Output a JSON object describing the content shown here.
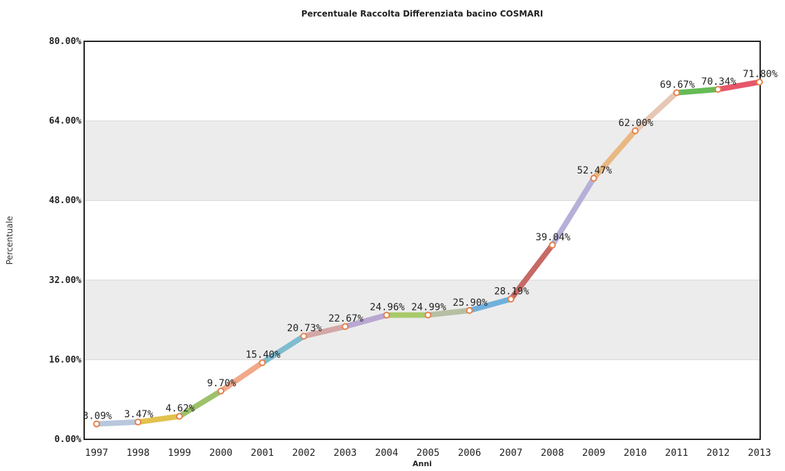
{
  "chart_data": {
    "type": "line",
    "title": "Percentuale Raccolta Differenziata bacino COSMARI",
    "xlabel": "Anni",
    "ylabel": "Percentuale",
    "ylim": [
      0,
      80
    ],
    "y_tick_values": [
      0,
      16,
      32,
      48,
      64,
      80
    ],
    "y_tick_labels": [
      "0.00%",
      "16.00%",
      "32.00%",
      "48.00%",
      "64.00%",
      "80.00%"
    ],
    "categories": [
      "1997",
      "1998",
      "1999",
      "2000",
      "2001",
      "2002",
      "2003",
      "2004",
      "2005",
      "2006",
      "2007",
      "2008",
      "2009",
      "2010",
      "2011",
      "2012",
      "2013"
    ],
    "values": [
      3.09,
      3.47,
      4.62,
      9.7,
      15.4,
      20.73,
      22.67,
      24.96,
      24.99,
      25.9,
      28.19,
      39.04,
      52.47,
      62.0,
      69.67,
      70.34,
      71.8
    ],
    "data_labels": [
      "3.09%",
      "3.47%",
      "4.62%",
      "9.70%",
      "15.40%",
      "20.73%",
      "22.67%",
      "24.96%",
      "24.99%",
      "25.90%",
      "28.19%",
      "39.04%",
      "52.47%",
      "62.00%",
      "69.67%",
      "70.34%",
      "71.80%"
    ],
    "segment_colors": [
      "#b8c7dc",
      "#e2c24e",
      "#9dc26a",
      "#f2a98a",
      "#7fbcd0",
      "#d4a7a6",
      "#b9a7d2",
      "#a9c96a",
      "#b7bfa3",
      "#6fb0dc",
      "#c76a66",
      "#b6b0d8",
      "#e9b882",
      "#e7c7b3",
      "#66bb55",
      "#e6566a"
    ],
    "alternate_band_color": "#ececec",
    "marker_stroke": "#e3824e",
    "marker_fill": "#ffffff",
    "grid": true,
    "legend": "none"
  }
}
